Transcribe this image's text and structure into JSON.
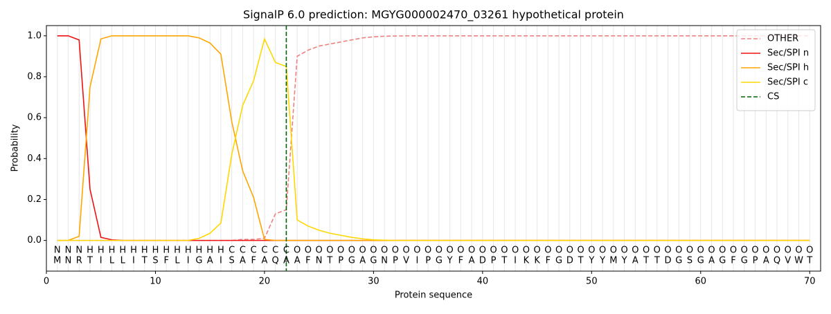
{
  "chart_data": {
    "type": "line",
    "title": "SignalP 6.0 prediction: MGYG000002470_03261 hypothetical protein",
    "xlabel": "Protein sequence",
    "ylabel": "Probability",
    "xlim": [
      0,
      71
    ],
    "ylim": [
      -0.15,
      1.05
    ],
    "xticks": [
      0,
      10,
      20,
      30,
      40,
      50,
      60,
      70
    ],
    "yticks": [
      {
        "value": 0,
        "label": "0.0"
      },
      {
        "value": 0.2,
        "label": "0.2"
      },
      {
        "value": 0.4,
        "label": "0.4"
      },
      {
        "value": 0.6,
        "label": "0.6"
      },
      {
        "value": 0.8,
        "label": "0.8"
      },
      {
        "value": 1,
        "label": "1.0"
      }
    ],
    "x": [
      1,
      2,
      3,
      4,
      5,
      6,
      7,
      8,
      9,
      10,
      11,
      12,
      13,
      14,
      15,
      16,
      17,
      18,
      19,
      20,
      21,
      22,
      23,
      24,
      25,
      26,
      27,
      28,
      29,
      30,
      31,
      32,
      33,
      34,
      35,
      36,
      37,
      38,
      39,
      40,
      41,
      42,
      43,
      44,
      45,
      46,
      47,
      48,
      49,
      50,
      51,
      52,
      53,
      54,
      55,
      56,
      57,
      58,
      59,
      60,
      61,
      62,
      63,
      64,
      65,
      66,
      67,
      68,
      69,
      70
    ],
    "series": [
      {
        "name": "OTHER",
        "color": "#f08080",
        "dashed": true,
        "values": [
          0,
          0,
          0,
          0,
          0,
          0,
          0,
          0,
          0,
          0,
          0,
          0,
          0,
          0,
          0,
          0,
          0,
          0.005,
          0.005,
          0.01,
          0.13,
          0.15,
          0.9,
          0.93,
          0.95,
          0.96,
          0.97,
          0.98,
          0.99,
          0.995,
          0.998,
          0.999,
          1,
          1,
          1,
          1,
          1,
          1,
          1,
          1,
          1,
          1,
          1,
          1,
          1,
          1,
          1,
          1,
          1,
          1,
          1,
          1,
          1,
          1,
          1,
          1,
          1,
          1,
          1,
          1,
          1,
          1,
          1,
          1,
          1,
          1,
          1,
          1,
          1,
          1
        ]
      },
      {
        "name": "Sec/SPI n",
        "color": "#ee1111",
        "dashed": false,
        "values": [
          1,
          1,
          0.98,
          0.25,
          0.015,
          0.003,
          0,
          0,
          0,
          0,
          0,
          0,
          0,
          0,
          0,
          0,
          0,
          0,
          0,
          0,
          0,
          0,
          0,
          0,
          0,
          0,
          0,
          0,
          0,
          0,
          0,
          0,
          0,
          0,
          0,
          0,
          0,
          0,
          0,
          0,
          0,
          0,
          0,
          0,
          0,
          0,
          0,
          0,
          0,
          0,
          0,
          0,
          0,
          0,
          0,
          0,
          0,
          0,
          0,
          0,
          0,
          0,
          0,
          0,
          0,
          0,
          0,
          0,
          0,
          0
        ]
      },
      {
        "name": "Sec/SPI h",
        "color": "#ffa500",
        "dashed": false,
        "values": [
          0,
          0,
          0.02,
          0.75,
          0.985,
          1,
          1,
          1,
          1,
          1,
          1,
          1,
          1,
          0.99,
          0.965,
          0.91,
          0.58,
          0.34,
          0.21,
          0.005,
          0,
          0,
          0,
          0,
          0,
          0,
          0,
          0,
          0,
          0,
          0,
          0,
          0,
          0,
          0,
          0,
          0,
          0,
          0,
          0,
          0,
          0,
          0,
          0,
          0,
          0,
          0,
          0,
          0,
          0,
          0,
          0,
          0,
          0,
          0,
          0,
          0,
          0,
          0,
          0,
          0,
          0,
          0,
          0,
          0,
          0,
          0,
          0,
          0,
          0
        ]
      },
      {
        "name": "Sec/SPI c",
        "color": "#ffd700",
        "dashed": false,
        "values": [
          0,
          0,
          0,
          0,
          0,
          0,
          0,
          0,
          0,
          0,
          0,
          0,
          0,
          0.01,
          0.035,
          0.085,
          0.42,
          0.66,
          0.78,
          0.985,
          0.87,
          0.85,
          0.1,
          0.07,
          0.05,
          0.035,
          0.025,
          0.015,
          0.008,
          0.003,
          0.001,
          0,
          0,
          0,
          0,
          0,
          0,
          0,
          0,
          0,
          0,
          0,
          0,
          0,
          0,
          0,
          0,
          0,
          0,
          0,
          0,
          0,
          0,
          0,
          0,
          0,
          0,
          0,
          0,
          0,
          0,
          0,
          0,
          0,
          0,
          0,
          0,
          0,
          0,
          0
        ]
      }
    ],
    "cs": {
      "name": "CS",
      "x": 22,
      "color": "#006400"
    },
    "region_labels": [
      "N",
      "N",
      "N",
      "H",
      "H",
      "H",
      "H",
      "H",
      "H",
      "H",
      "H",
      "H",
      "H",
      "H",
      "H",
      "H",
      "C",
      "C",
      "C",
      "C",
      "C",
      "C",
      "O",
      "O",
      "O",
      "O",
      "O",
      "O",
      "O",
      "O",
      "O",
      "O",
      "O",
      "O",
      "O",
      "O",
      "O",
      "O",
      "O",
      "O",
      "O",
      "O",
      "O",
      "O",
      "O",
      "O",
      "O",
      "O",
      "O",
      "O",
      "O",
      "O",
      "O",
      "O",
      "O",
      "O",
      "O",
      "O",
      "O",
      "O",
      "O",
      "O",
      "O",
      "O",
      "O",
      "O",
      "O",
      "O",
      "O",
      "O"
    ],
    "region_colors": {
      "N": "#ee1111",
      "H": "#ffa500",
      "C": "#ffd700",
      "O": "#888888"
    },
    "sequence": [
      "M",
      "N",
      "R",
      "T",
      "I",
      "L",
      "L",
      "I",
      "T",
      "S",
      "F",
      "L",
      "I",
      "G",
      "A",
      "I",
      "S",
      "A",
      "F",
      "A",
      "Q",
      "A",
      "A",
      "F",
      "N",
      "T",
      "P",
      "G",
      "A",
      "G",
      "N",
      "P",
      "V",
      "I",
      "P",
      "G",
      "Y",
      "F",
      "A",
      "D",
      "P",
      "T",
      "I",
      "K",
      "K",
      "F",
      "G",
      "D",
      "T",
      "Y",
      "Y",
      "M",
      "Y",
      "A",
      "T",
      "T",
      "D",
      "G",
      "S",
      "G",
      "A",
      "G",
      "F",
      "G",
      "P",
      "A",
      "Q",
      "V",
      "W",
      "T"
    ],
    "legend": "upper right",
    "grid": true
  }
}
